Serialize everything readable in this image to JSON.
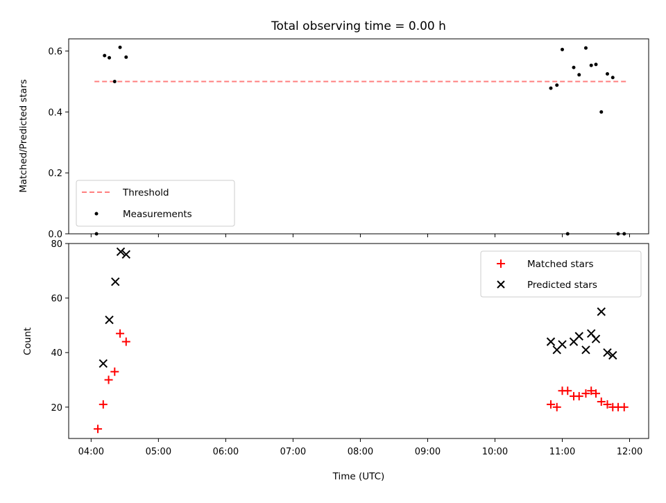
{
  "chart_data": [
    {
      "type": "scatter",
      "title": "Total observing time = 0.00 h",
      "xlabel": "",
      "ylabel": "Matched/Predicted stars",
      "xlim_hours": [
        3.6667,
        12.2833
      ],
      "ylim": [
        0.0,
        0.64
      ],
      "yticks": [
        0.0,
        0.2,
        0.4,
        0.6
      ],
      "ytick_labels": [
        "0.0",
        "0.2",
        "0.4",
        "0.6"
      ],
      "xticks_hours": [
        4,
        5,
        6,
        7,
        8,
        9,
        10,
        11,
        12
      ],
      "threshold": {
        "name": "Threshold",
        "value": 0.5,
        "x_range_hours": [
          4.05,
          11.95
        ],
        "color": "#ff7f7f"
      },
      "series": [
        {
          "name": "Measurements",
          "color": "#000000",
          "x_hours": [
            4.08,
            4.2,
            4.27,
            4.35,
            4.43,
            4.52,
            10.83,
            10.92,
            11.0,
            11.08,
            11.17,
            11.25,
            11.35,
            11.43,
            11.5,
            11.58,
            11.67,
            11.75,
            11.83,
            11.92
          ],
          "values": [
            0.0,
            0.585,
            0.578,
            0.5,
            0.612,
            0.58,
            0.478,
            0.488,
            0.605,
            0.0,
            0.546,
            0.522,
            0.61,
            0.553,
            0.556,
            0.4,
            0.525,
            0.513,
            0.0,
            0.0
          ]
        }
      ],
      "legend_position": "lower left",
      "grid": false
    },
    {
      "type": "scatter",
      "title": "",
      "xlabel": "Time (UTC)",
      "ylabel": "Count",
      "xlim_hours": [
        3.6667,
        12.2833
      ],
      "ylim": [
        8.5,
        80
      ],
      "yticks": [
        20,
        40,
        60,
        80
      ],
      "ytick_labels": [
        "20",
        "40",
        "60",
        "80"
      ],
      "xticks_hours": [
        4,
        5,
        6,
        7,
        8,
        9,
        10,
        11,
        12
      ],
      "xtick_labels": [
        "04:00",
        "05:00",
        "06:00",
        "07:00",
        "08:00",
        "09:00",
        "10:00",
        "11:00",
        "12:00"
      ],
      "series": [
        {
          "name": "Matched stars",
          "marker": "plus",
          "color": "#ff0000",
          "x_hours": [
            4.1,
            4.18,
            4.26,
            4.35,
            4.43,
            4.52,
            10.83,
            10.92,
            11.0,
            11.08,
            11.17,
            11.25,
            11.35,
            11.43,
            11.5,
            11.58,
            11.67,
            11.75,
            11.83,
            11.92
          ],
          "values": [
            12,
            21,
            30,
            33,
            47,
            44,
            21,
            20,
            26,
            26,
            24,
            24,
            25,
            26,
            25,
            22,
            21,
            20,
            20,
            20
          ]
        },
        {
          "name": "Predicted stars",
          "marker": "x",
          "color": "#000000",
          "x_hours": [
            4.18,
            4.27,
            4.36,
            4.44,
            4.52,
            10.83,
            10.92,
            11.0,
            11.17,
            11.25,
            11.35,
            11.43,
            11.5,
            11.58,
            11.67,
            11.75
          ],
          "values": [
            36,
            52,
            66,
            77,
            76,
            44,
            41,
            43,
            44,
            46,
            41,
            47,
            45,
            55,
            40,
            39
          ]
        }
      ],
      "legend_position": "upper right",
      "grid": false
    }
  ]
}
